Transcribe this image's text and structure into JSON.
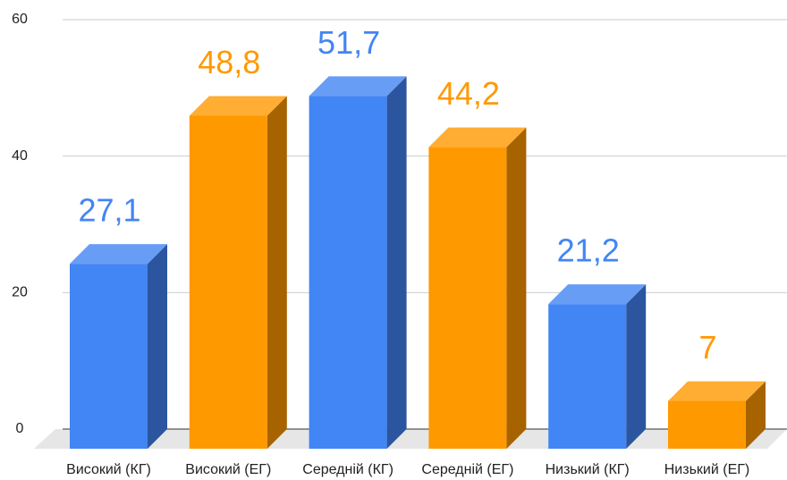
{
  "chart_data": {
    "type": "bar3d",
    "categories": [
      "Високий (КГ)",
      "Високий (ЕГ)",
      "Середній (КГ)",
      "Середній (ЕГ)",
      "Низький (КГ)",
      "Низький (ЕГ)"
    ],
    "values": [
      27.1,
      48.8,
      51.7,
      44.2,
      21.2,
      7
    ],
    "value_labels": [
      "27,1",
      "48,8",
      "51,7",
      "44,2",
      "21,2",
      "7"
    ],
    "colors": [
      "#4285f4",
      "#ff9900",
      "#4285f4",
      "#ff9900",
      "#4285f4",
      "#ff9900"
    ],
    "ylim": [
      0,
      60
    ],
    "yticks": [
      0,
      20,
      40,
      60
    ],
    "grid": true
  }
}
